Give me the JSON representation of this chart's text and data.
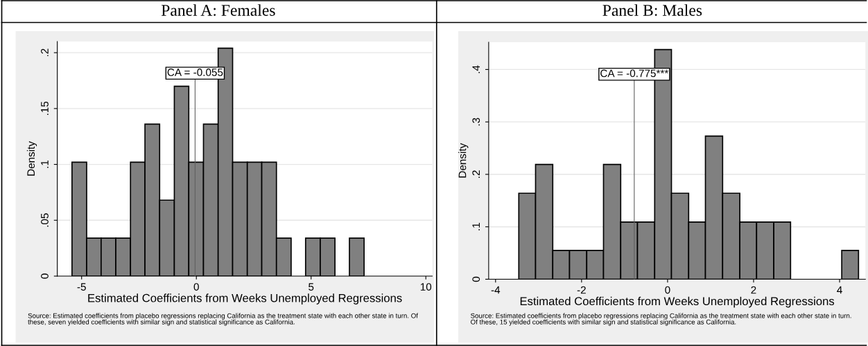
{
  "chart_data": [
    {
      "type": "histogram",
      "title": "Panel A: Females",
      "xlabel": "Estimated Coefficients from Weeks Unemployed Regressions",
      "ylabel": "Density",
      "bins": [
        -5.42,
        -4.78,
        -4.15,
        -3.51,
        -2.87,
        -2.24,
        -1.6,
        -0.96,
        -0.33,
        0.31,
        0.95,
        1.58,
        2.22,
        2.85,
        3.49,
        4.13,
        4.76,
        5.4,
        6.04,
        6.67,
        7.31
      ],
      "values": [
        0.102,
        0.034,
        0.034,
        0.034,
        0.102,
        0.136,
        0.068,
        0.17,
        0.102,
        0.136,
        0.204,
        0.102,
        0.102,
        0.102,
        0.034,
        0,
        0.034,
        0.034,
        0,
        0.034
      ],
      "color": "#808080",
      "xlim": [
        -6.06,
        10.28
      ],
      "ylim": [
        0,
        0.21
      ],
      "xticks": [
        -5,
        0,
        5,
        10
      ],
      "yticks": [
        0,
        {
          "value": 0.05,
          "label": ".05"
        },
        {
          "value": 0.1,
          "label": ".1"
        },
        {
          "value": 0.15,
          "label": ".15"
        },
        {
          "value": 0.2,
          "label": ".2"
        }
      ],
      "grid": "y",
      "ref_lines": [
        {
          "axis": "x",
          "value": -0.055,
          "label": "CA = -0.055",
          "color": "#606060"
        }
      ],
      "annotations": [
        "Source: Estimated coefficients from placebo regressions replacing California as the treatment state with each other state in turn. Of these, seven yielded coefficients with similar sign and statistical significance as California."
      ]
    },
    {
      "type": "histogram",
      "title": "Panel B: Males",
      "xlabel": "Estimated Coefficients from Weeks Unemployed Regressions",
      "ylabel": "Density",
      "bins": [
        -3.46,
        -3.07,
        -2.67,
        -2.28,
        -1.88,
        -1.49,
        -1.09,
        -0.7,
        -0.3,
        0.09,
        0.49,
        0.88,
        1.28,
        1.68,
        2.07,
        2.47,
        2.86,
        4.05,
        4.44
      ],
      "values": [
        0.164,
        0.219,
        0.055,
        0.055,
        0.055,
        0.219,
        0.109,
        0.109,
        0.438,
        0.164,
        0.109,
        0.273,
        0.164,
        0.109,
        0.109,
        0.109,
        0,
        0.055
      ],
      "color": "#808080",
      "xlim": [
        -4.16,
        4.6
      ],
      "ylim": [
        0,
        0.452
      ],
      "xticks": [
        -4,
        -2,
        0,
        2,
        4
      ],
      "yticks": [
        0,
        {
          "value": 0.1,
          "label": ".1"
        },
        {
          "value": 0.2,
          "label": ".2"
        },
        {
          "value": 0.3,
          "label": ".3"
        },
        {
          "value": 0.4,
          "label": ".4"
        }
      ],
      "grid": "y",
      "ref_lines": [
        {
          "axis": "x",
          "value": -0.775,
          "label": "CA = -0.775***",
          "color": "#606060"
        }
      ],
      "annotations": [
        "Source: Estimated coefficients from placebo regressions replacing California as the treatment state with each other state in turn. Of these, 15 yielded coefficients with similar sign and statistical significance as California."
      ]
    }
  ]
}
